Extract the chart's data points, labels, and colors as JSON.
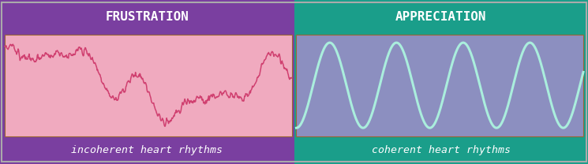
{
  "outer_border_color": "#7A3FA0",
  "left_bg_color": "#7A3FA0",
  "right_bg_color": "#1A9E8A",
  "left_panel_bg": "#F0AABF",
  "right_panel_bg": "#8C8FC0",
  "left_title": "FRUSTRATION",
  "right_title": "APPRECIATION",
  "left_label": "incoherent heart rhythms",
  "right_label": "coherent heart rhythms",
  "title_color": "#FFFFFF",
  "label_color": "#FFFFFF",
  "incoherent_line_color": "#D04070",
  "coherent_line_color": "#AAEEDD",
  "title_fontsize": 11.5,
  "label_fontsize": 9.5,
  "fig_width": 7.45,
  "fig_height": 2.08,
  "dpi": 100
}
